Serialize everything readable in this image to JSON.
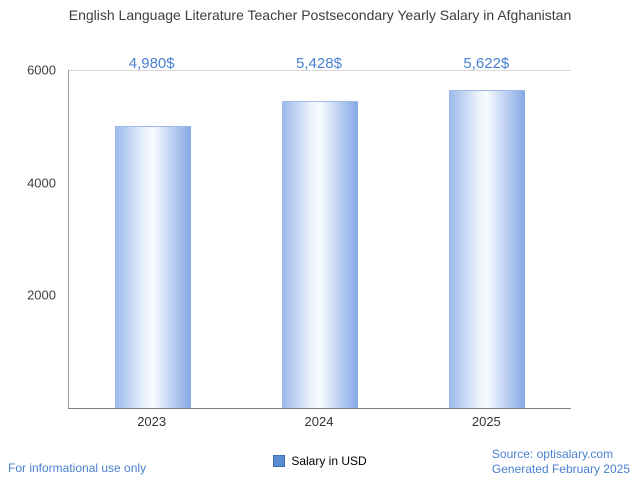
{
  "title": "English Language Literature Teacher Postsecondary Yearly Salary in Afghanistan",
  "chart_data": {
    "type": "bar",
    "categories": [
      "2023",
      "2024",
      "2025"
    ],
    "values": [
      4980,
      5428,
      5622
    ],
    "value_labels": [
      "4,980$",
      "5,428$",
      "5,622$"
    ],
    "series_name": "Salary in USD",
    "xlabel": "",
    "ylabel": "",
    "ylim": [
      0,
      6000
    ],
    "ytick_labels_top_to_bottom": [
      "6000",
      "4000",
      "2000"
    ],
    "grid": "top-line-only",
    "legend_position": "bottom-center",
    "bar_color_gradient": [
      "#9bb9ec",
      "#f8fbfe",
      "#84a9e4"
    ],
    "accent_text_color": "#4a7fd1"
  },
  "legend": {
    "label": "Salary in USD"
  },
  "footer": {
    "disclaimer": "For informational use only",
    "source": "Source: optisalary.com",
    "generated": "Generated February 2025"
  }
}
